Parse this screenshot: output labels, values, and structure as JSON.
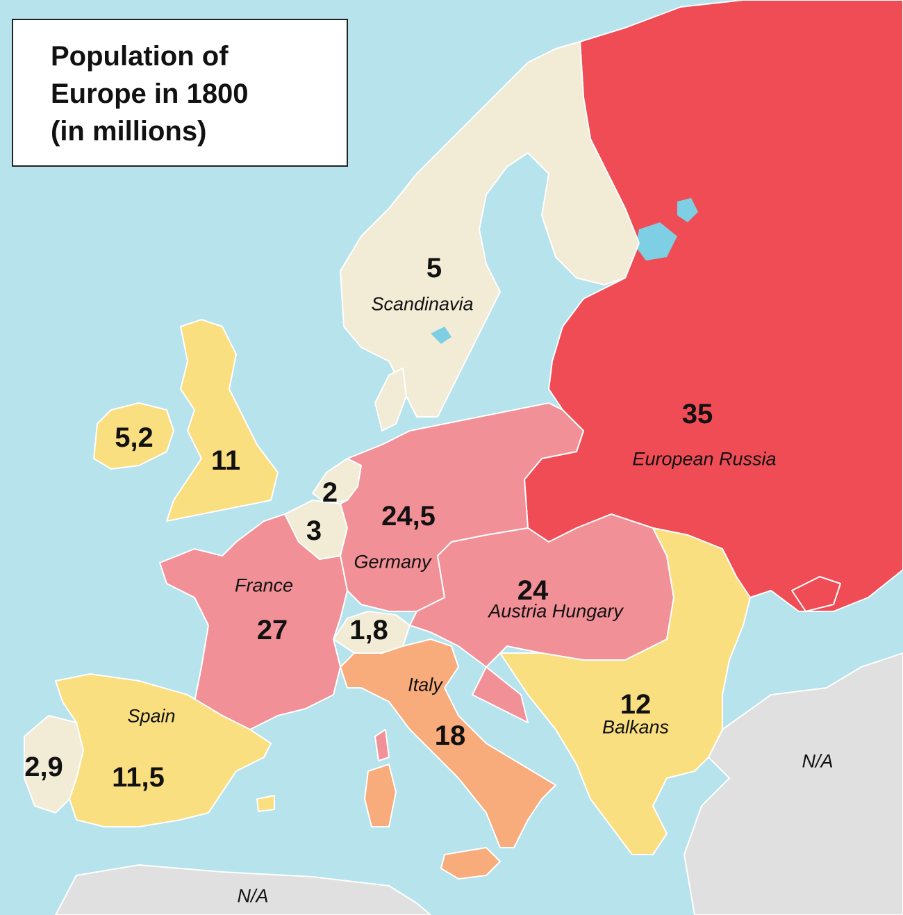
{
  "title": {
    "line1": "Population of",
    "line2": "Europe in 1800",
    "line3": "(in millions)"
  },
  "colors": {
    "sea": "#b7e3ec",
    "na": "#e0e0e0",
    "low": "#f2ecd6",
    "mid_yellow": "#fadf81",
    "orange": "#f8ab7b",
    "pink": "#f29097",
    "red": "#ef4c55"
  },
  "regions": [
    {
      "id": "scandinavia",
      "name": "Scandinavia",
      "population": "5",
      "color_class": "low"
    },
    {
      "id": "european-russia",
      "name": "European Russia",
      "population": "35",
      "color_class": "red"
    },
    {
      "id": "ireland",
      "name": "",
      "population": "5,2",
      "color_class": "mid_yellow"
    },
    {
      "id": "britain",
      "name": "",
      "population": "11",
      "color_class": "mid_yellow"
    },
    {
      "id": "netherlands",
      "name": "",
      "population": "2",
      "color_class": "low"
    },
    {
      "id": "belgium",
      "name": "",
      "population": "3",
      "color_class": "low"
    },
    {
      "id": "germany",
      "name": "Germany",
      "population": "24,5",
      "color_class": "pink"
    },
    {
      "id": "austria-hungary",
      "name": "Austria Hungary",
      "population": "24",
      "color_class": "pink"
    },
    {
      "id": "france",
      "name": "France",
      "population": "27",
      "color_class": "pink"
    },
    {
      "id": "switzerland",
      "name": "",
      "population": "1,8",
      "color_class": "low"
    },
    {
      "id": "italy",
      "name": "Italy",
      "population": "18",
      "color_class": "orange"
    },
    {
      "id": "balkans",
      "name": "Balkans",
      "population": "12",
      "color_class": "mid_yellow"
    },
    {
      "id": "spain",
      "name": "Spain",
      "population": "11,5",
      "color_class": "mid_yellow"
    },
    {
      "id": "portugal",
      "name": "",
      "population": "2,9",
      "color_class": "low"
    }
  ],
  "na_labels": [
    "N/A",
    "N/A"
  ]
}
